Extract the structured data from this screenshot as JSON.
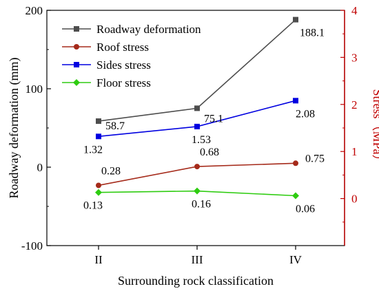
{
  "chart_data": {
    "type": "line",
    "categories": [
      "II",
      "III",
      "IV"
    ],
    "xlabel": "Surrounding rock classification",
    "ylabel_left": "Roadway deformation (mm)",
    "ylabel_right": "Stress（MPa）",
    "ylim_left": [
      -100,
      200
    ],
    "ylim_right": [
      -1,
      4
    ],
    "yticks_left": [
      "200",
      "100",
      "0",
      "-100"
    ],
    "yticks_right": [
      "4",
      "3",
      "2",
      "1",
      "0"
    ],
    "grid": false,
    "legend_position": "top-left",
    "colors": {
      "left_axis": "#000000",
      "right_axis": "#c00000"
    },
    "series": [
      {
        "name": "Roadway deformation",
        "axis": "left",
        "color": "#4d4d4d",
        "marker": "square",
        "values": [
          58.7,
          75.1,
          188.1
        ],
        "labels": [
          "58.7",
          "75.1",
          "188.1"
        ]
      },
      {
        "name": "Roof stress",
        "axis": "right",
        "color": "#a52a1a",
        "marker": "circle",
        "values": [
          0.28,
          0.68,
          0.75
        ],
        "labels": [
          "0.28",
          "0.68",
          "0.75"
        ]
      },
      {
        "name": "Sides stress",
        "axis": "right",
        "color": "#0000e0",
        "marker": "square",
        "values": [
          1.32,
          1.53,
          2.08
        ],
        "labels": [
          "1.32",
          "1.53",
          "2.08"
        ]
      },
      {
        "name": "Floor stress",
        "axis": "right",
        "color": "#2ecc10",
        "marker": "diamond",
        "values": [
          0.13,
          0.16,
          0.06
        ],
        "labels": [
          "0.13",
          "0.16",
          "0.06"
        ]
      }
    ]
  }
}
